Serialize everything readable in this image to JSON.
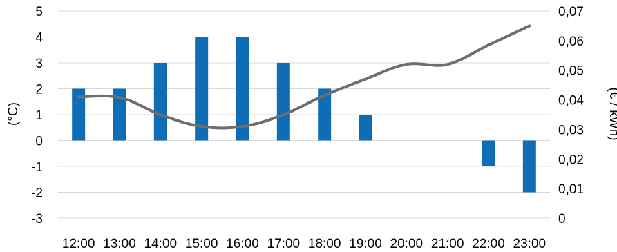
{
  "chart_data": {
    "type": "bar",
    "categories": [
      "12:00",
      "13:00",
      "14:00",
      "15:00",
      "16:00",
      "17:00",
      "18:00",
      "19:00",
      "20:00",
      "21:00",
      "22:00",
      "23:00"
    ],
    "series": [
      {
        "kind": "bar",
        "axis": "left",
        "color": "#0f6db5",
        "values": [
          2,
          2,
          3,
          4,
          4,
          3,
          2,
          1,
          0,
          0,
          -1,
          -2
        ]
      },
      {
        "kind": "line",
        "axis": "right",
        "color": "#6e6e6e",
        "values": [
          0.041,
          0.0408,
          0.035,
          0.031,
          0.031,
          0.035,
          0.0415,
          0.047,
          0.052,
          0.052,
          0.0585,
          0.065
        ]
      }
    ],
    "y_left": {
      "label": "(°C)",
      "min": -3,
      "max": 5,
      "step": 1,
      "ticks": [
        "-3",
        "-2",
        "-1",
        "0",
        "1",
        "2",
        "3",
        "4",
        "5"
      ]
    },
    "y_right": {
      "label": "(€ / kWh)",
      "min": 0,
      "max": 0.07,
      "step": 0.01,
      "ticks": [
        "0",
        "0,01",
        "0,02",
        "0,03",
        "0,04",
        "0,05",
        "0,06",
        "0,07"
      ]
    },
    "grid": true,
    "legend": "none"
  }
}
